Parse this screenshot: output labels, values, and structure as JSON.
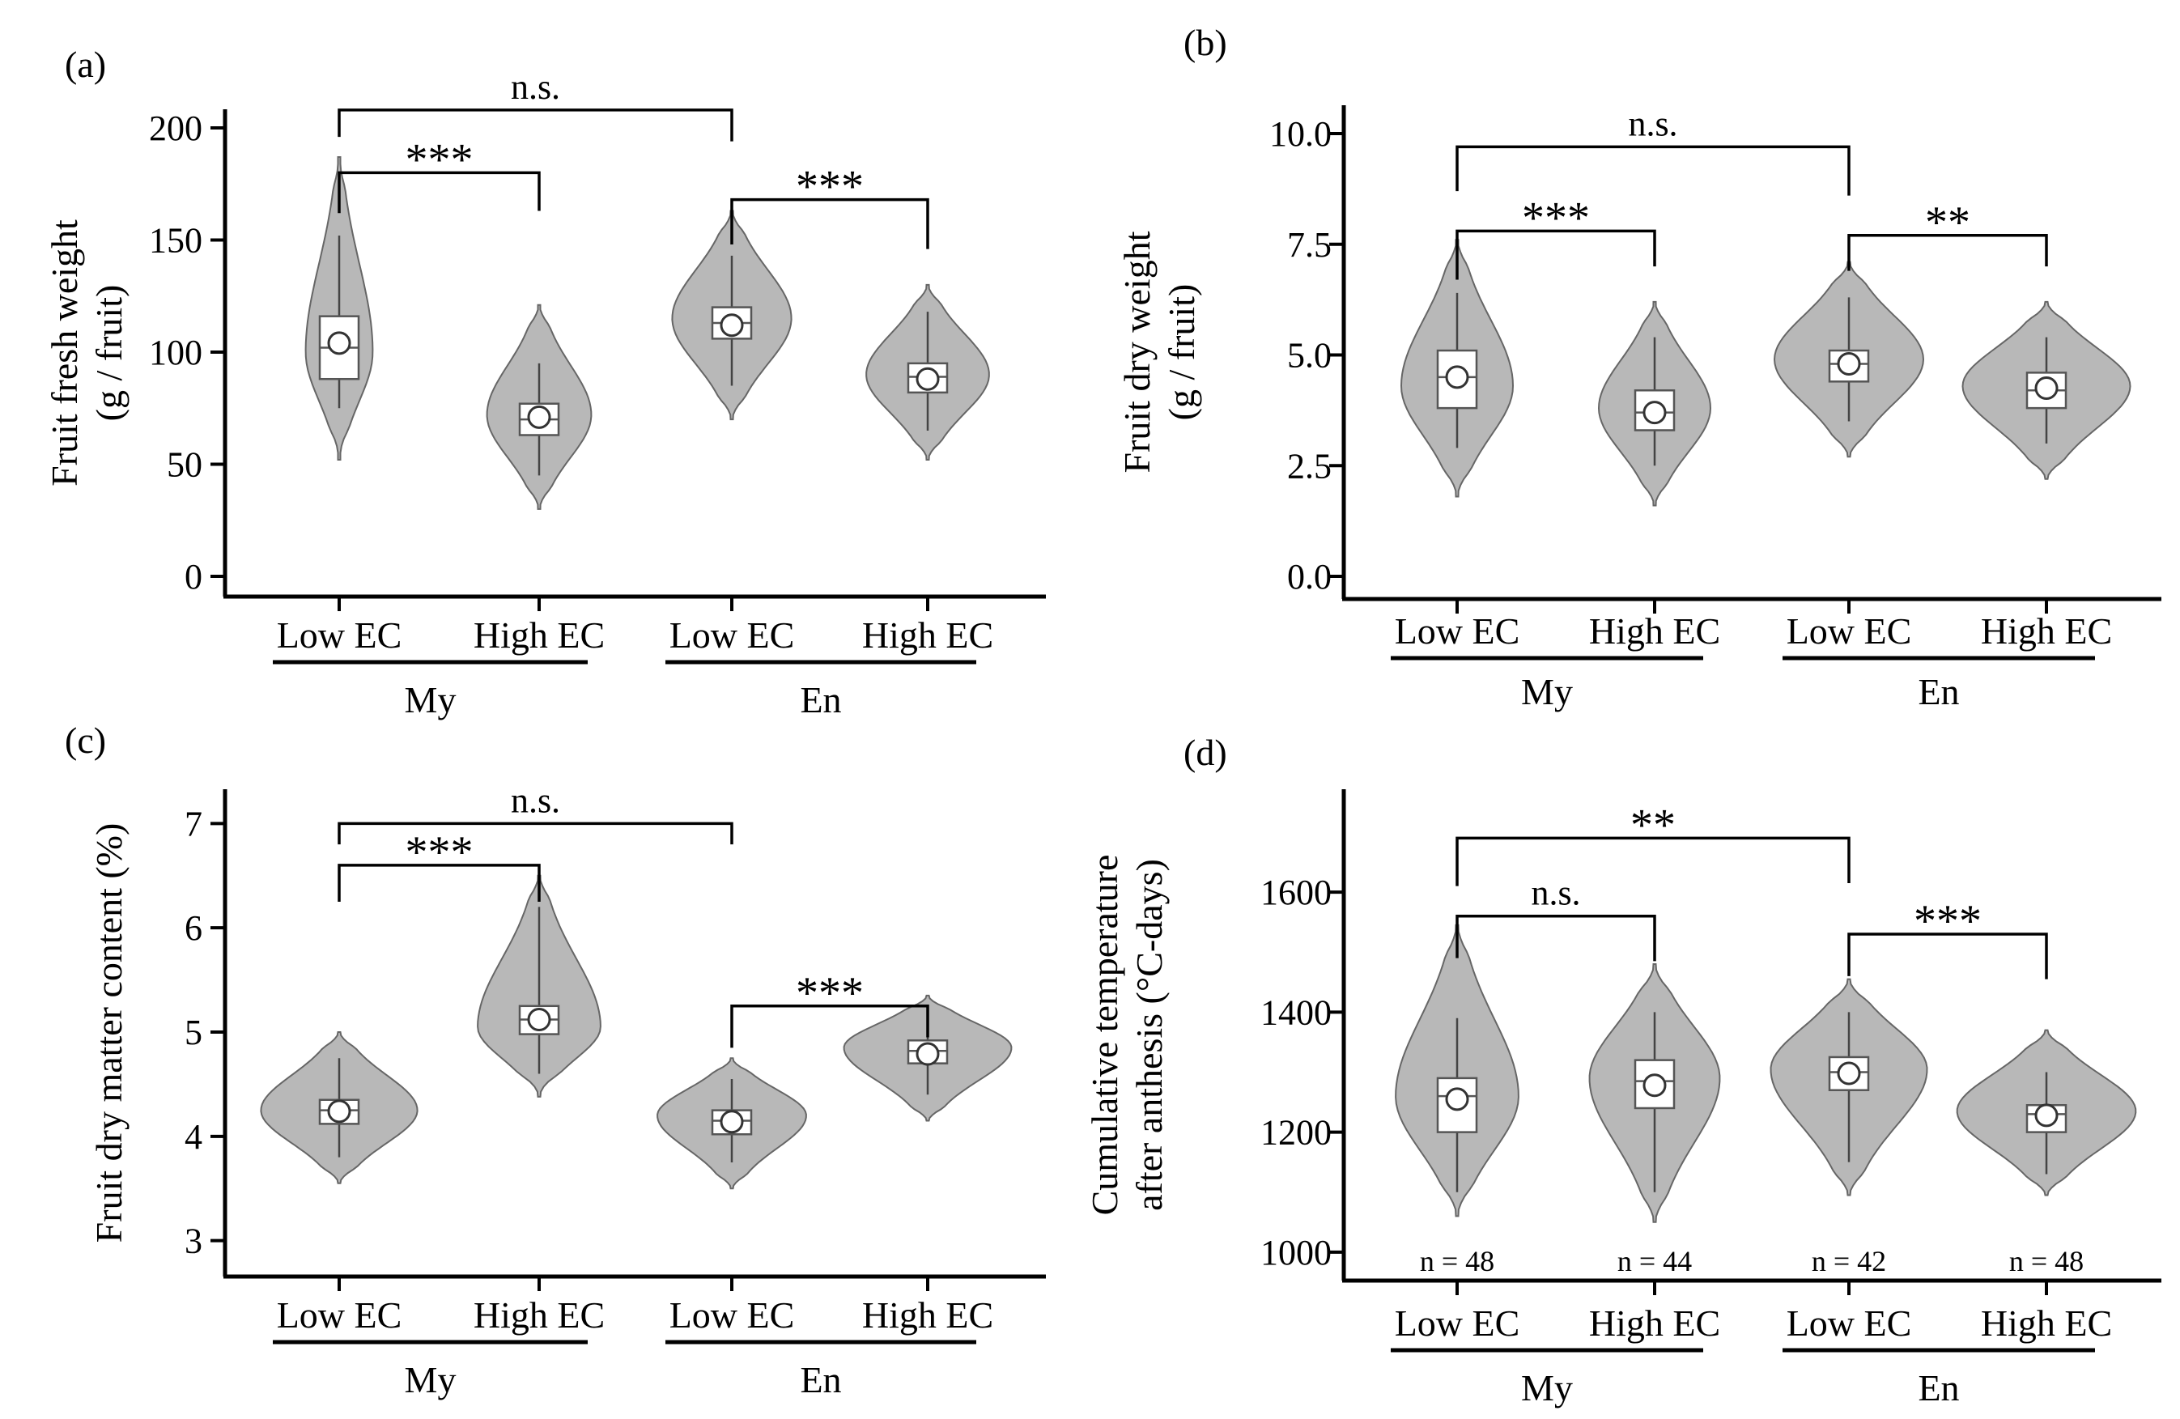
{
  "colors": {
    "violin": "#b8b8b8",
    "box": "#ffffff",
    "axis": "#000000"
  },
  "chart_data": [
    {
      "panel": "(a)",
      "type": "violin",
      "ylabel": "Fruit fresh weight",
      "ylabel2": "(g / fruit)",
      "ylim": [
        0,
        200
      ],
      "yticks": [
        0,
        50,
        100,
        150,
        200
      ],
      "tick_labels": [
        "0",
        "50",
        "100",
        "150",
        "200"
      ],
      "groups": [
        {
          "name": "My",
          "categories": [
            "Low EC",
            "High EC"
          ]
        },
        {
          "name": "En",
          "categories": [
            "Low EC",
            "High EC"
          ]
        }
      ],
      "violins": [
        {
          "category": "Low EC",
          "group": "My",
          "min": 52,
          "max": 187,
          "q1": 88,
          "median": 102,
          "q3": 116,
          "mean": 104,
          "wlo": 75,
          "whi": 152,
          "mode": 100,
          "w": 0.18
        },
        {
          "category": "High EC",
          "group": "My",
          "min": 30,
          "max": 121,
          "q1": 63,
          "median": 70,
          "q3": 77,
          "mean": 71,
          "wlo": 45,
          "whi": 95,
          "mode": 72,
          "w": 0.28
        },
        {
          "category": "Low EC",
          "group": "En",
          "min": 70,
          "max": 163,
          "q1": 106,
          "median": 113,
          "q3": 120,
          "mean": 112,
          "wlo": 85,
          "whi": 143,
          "mode": 115,
          "w": 0.32
        },
        {
          "category": "High EC",
          "group": "En",
          "min": 52,
          "max": 130,
          "q1": 82,
          "median": 89,
          "q3": 95,
          "mean": 88,
          "wlo": 65,
          "whi": 118,
          "mode": 90,
          "w": 0.33
        }
      ],
      "brackets": [
        {
          "from": 1,
          "to": 3,
          "label": "n.s.",
          "y": 208,
          "left_end": 196,
          "right_end": 194
        },
        {
          "from": 1,
          "to": 2,
          "label": "***",
          "y": 180,
          "left_end": 162,
          "right_end": 163
        },
        {
          "from": 3,
          "to": 4,
          "label": "***",
          "y": 168,
          "left_end": 148,
          "right_end": 146
        }
      ]
    },
    {
      "panel": "(b)",
      "type": "violin",
      "ylabel": "Fruit dry weight",
      "ylabel2": "(g / fruit)",
      "ylim": [
        0,
        10
      ],
      "yticks": [
        0,
        2.5,
        5,
        7.5,
        10
      ],
      "tick_labels": [
        "0.0",
        "2.5",
        "5.0",
        "7.5",
        "10.0"
      ],
      "groups": [
        {
          "name": "My",
          "categories": [
            "Low EC",
            "High EC"
          ]
        },
        {
          "name": "En",
          "categories": [
            "Low EC",
            "High EC"
          ]
        }
      ],
      "violins": [
        {
          "category": "Low EC",
          "group": "My",
          "min": 1.8,
          "max": 7.6,
          "q1": 3.8,
          "median": 4.5,
          "q3": 5.1,
          "mean": 4.5,
          "wlo": 2.9,
          "whi": 6.4,
          "mode": 4.3,
          "w": 0.3
        },
        {
          "category": "High EC",
          "group": "My",
          "min": 1.6,
          "max": 6.2,
          "q1": 3.3,
          "median": 3.7,
          "q3": 4.2,
          "mean": 3.7,
          "wlo": 2.5,
          "whi": 5.4,
          "mode": 3.8,
          "w": 0.3
        },
        {
          "category": "Low EC",
          "group": "En",
          "min": 2.7,
          "max": 7.1,
          "q1": 4.4,
          "median": 4.8,
          "q3": 5.1,
          "mean": 4.8,
          "wlo": 3.5,
          "whi": 6.3,
          "mode": 4.9,
          "w": 0.4
        },
        {
          "category": "High EC",
          "group": "En",
          "min": 2.2,
          "max": 6.2,
          "q1": 3.8,
          "median": 4.2,
          "q3": 4.6,
          "mean": 4.25,
          "wlo": 3.0,
          "whi": 5.4,
          "mode": 4.3,
          "w": 0.45
        }
      ],
      "brackets": [
        {
          "from": 1,
          "to": 3,
          "label": "n.s.",
          "y": 9.7,
          "left_end": 8.7,
          "right_end": 8.6
        },
        {
          "from": 1,
          "to": 2,
          "label": "***",
          "y": 7.8,
          "left_end": 6.7,
          "right_end": 7.0
        },
        {
          "from": 3,
          "to": 4,
          "label": "**",
          "y": 7.7,
          "left_end": 6.9,
          "right_end": 7.0
        }
      ]
    },
    {
      "panel": "(c)",
      "type": "violin",
      "ylabel": "Fruit dry matter content (%)",
      "ylim": [
        2.85,
        7.15
      ],
      "yticks": [
        3,
        4,
        5,
        6,
        7
      ],
      "tick_labels": [
        "3",
        "4",
        "5",
        "6",
        "7"
      ],
      "groups": [
        {
          "name": "My",
          "categories": [
            "Low EC",
            "High EC"
          ]
        },
        {
          "name": "En",
          "categories": [
            "Low EC",
            "High EC"
          ]
        }
      ],
      "violins": [
        {
          "category": "Low EC",
          "group": "My",
          "min": 3.55,
          "max": 5.0,
          "q1": 4.12,
          "median": 4.25,
          "q3": 4.35,
          "mean": 4.24,
          "wlo": 3.8,
          "whi": 4.75,
          "mode": 4.25,
          "w": 0.42
        },
        {
          "category": "High EC",
          "group": "My",
          "min": 4.38,
          "max": 6.5,
          "q1": 4.98,
          "median": 5.12,
          "q3": 5.25,
          "mean": 5.12,
          "wlo": 4.6,
          "whi": 6.2,
          "mode": 5.05,
          "w": 0.33
        },
        {
          "category": "Low EC",
          "group": "En",
          "min": 3.5,
          "max": 4.75,
          "q1": 4.02,
          "median": 4.15,
          "q3": 4.25,
          "mean": 4.14,
          "wlo": 3.75,
          "whi": 4.55,
          "mode": 4.2,
          "w": 0.4
        },
        {
          "category": "High EC",
          "group": "En",
          "min": 4.15,
          "max": 5.35,
          "q1": 4.7,
          "median": 4.82,
          "q3": 4.92,
          "mean": 4.79,
          "wlo": 4.4,
          "whi": 5.15,
          "mode": 4.85,
          "w": 0.45
        }
      ],
      "brackets": [
        {
          "from": 1,
          "to": 3,
          "label": "n.s.",
          "y": 7.0,
          "left_end": 6.8,
          "right_end": 6.8
        },
        {
          "from": 1,
          "to": 2,
          "label": "***",
          "y": 6.6,
          "left_end": 6.25,
          "right_end": 6.25
        },
        {
          "from": 3,
          "to": 4,
          "label": "***",
          "y": 5.25,
          "left_end": 4.85,
          "right_end": 4.95
        }
      ]
    },
    {
      "panel": "(d)",
      "type": "violin",
      "ylabel": "Cumulative temperature",
      "ylabel2": "after anthesis (°C-days)",
      "ylim": [
        985,
        1735
      ],
      "yticks": [
        1000,
        1200,
        1400,
        1600
      ],
      "tick_labels": [
        "1000",
        "1200",
        "1400",
        "1600"
      ],
      "groups": [
        {
          "name": "My",
          "categories": [
            "Low EC",
            "High EC"
          ]
        },
        {
          "name": "En",
          "categories": [
            "Low EC",
            "High EC"
          ]
        }
      ],
      "violins": [
        {
          "category": "Low EC",
          "group": "My",
          "min": 1060,
          "max": 1545,
          "q1": 1200,
          "median": 1260,
          "q3": 1290,
          "mean": 1255,
          "wlo": 1100,
          "whi": 1390,
          "mode": 1260,
          "w": 0.33,
          "n": "n = 48"
        },
        {
          "category": "High EC",
          "group": "My",
          "min": 1050,
          "max": 1480,
          "q1": 1240,
          "median": 1285,
          "q3": 1320,
          "mean": 1278,
          "wlo": 1100,
          "whi": 1400,
          "mode": 1290,
          "w": 0.35,
          "n": "n = 44"
        },
        {
          "category": "Low EC",
          "group": "En",
          "min": 1095,
          "max": 1455,
          "q1": 1270,
          "median": 1300,
          "q3": 1325,
          "mean": 1298,
          "wlo": 1150,
          "whi": 1400,
          "mode": 1305,
          "w": 0.42,
          "n": "n = 42"
        },
        {
          "category": "High EC",
          "group": "En",
          "min": 1095,
          "max": 1370,
          "q1": 1200,
          "median": 1230,
          "q3": 1245,
          "mean": 1228,
          "wlo": 1130,
          "whi": 1300,
          "mode": 1235,
          "w": 0.48,
          "n": "n = 48"
        }
      ],
      "brackets": [
        {
          "from": 1,
          "to": 3,
          "label": "**",
          "y": 1690,
          "left_end": 1610,
          "right_end": 1615
        },
        {
          "from": 1,
          "to": 2,
          "label": "n.s.",
          "y": 1560,
          "left_end": 1490,
          "right_end": 1485
        },
        {
          "from": 3,
          "to": 4,
          "label": "***",
          "y": 1530,
          "left_end": 1460,
          "right_end": 1455
        }
      ]
    }
  ]
}
